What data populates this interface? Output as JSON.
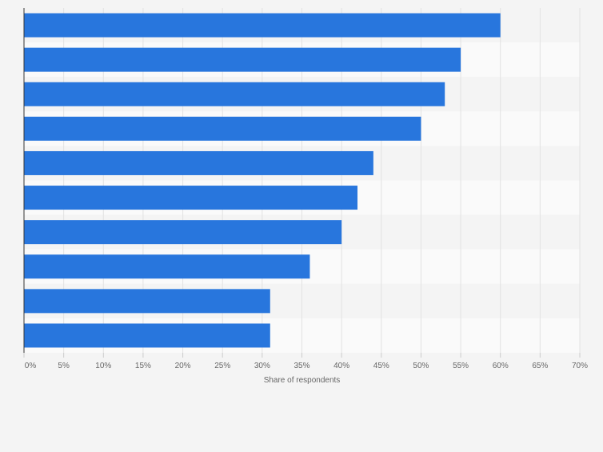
{
  "chart_data": {
    "type": "bar",
    "orientation": "horizontal",
    "categories": [
      "",
      "",
      "",
      "",
      "",
      "",
      "",
      "",
      "",
      ""
    ],
    "values": [
      60,
      55,
      53,
      50,
      44,
      42,
      40,
      36,
      31,
      31
    ],
    "title": "",
    "xlabel": "Share of respondents",
    "ylabel": "",
    "xlim": [
      0,
      70
    ],
    "xticks": [
      "0%",
      "5%",
      "10%",
      "15%",
      "20%",
      "25%",
      "30%",
      "35%",
      "40%",
      "45%",
      "50%",
      "55%",
      "60%",
      "65%",
      "70%"
    ],
    "grid": true,
    "legend": "none",
    "bar_color": "#2876dd"
  }
}
